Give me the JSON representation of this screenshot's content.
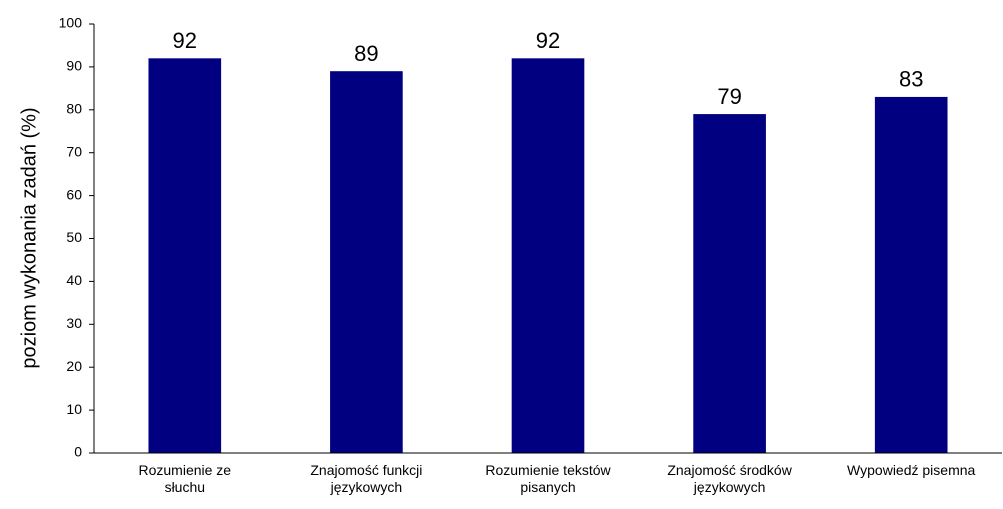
{
  "chart_data": {
    "type": "bar",
    "y_label": "poziom wykonania  zadań (%)",
    "categories": [
      "Rozumienie ze\nsłuchu",
      "Znajomość funkcji\njęzykowych",
      "Rozumienie tekstów\npisanych",
      "Znajomość środków\njęzykowych",
      "Wypowiedź pisemna"
    ],
    "values": [
      92,
      89,
      92,
      79,
      83
    ],
    "color": "#000080",
    "ylim": [
      0,
      100
    ],
    "yticks": [
      0,
      10,
      20,
      30,
      40,
      50,
      60,
      70,
      80,
      90,
      100
    ],
    "grid": false
  }
}
